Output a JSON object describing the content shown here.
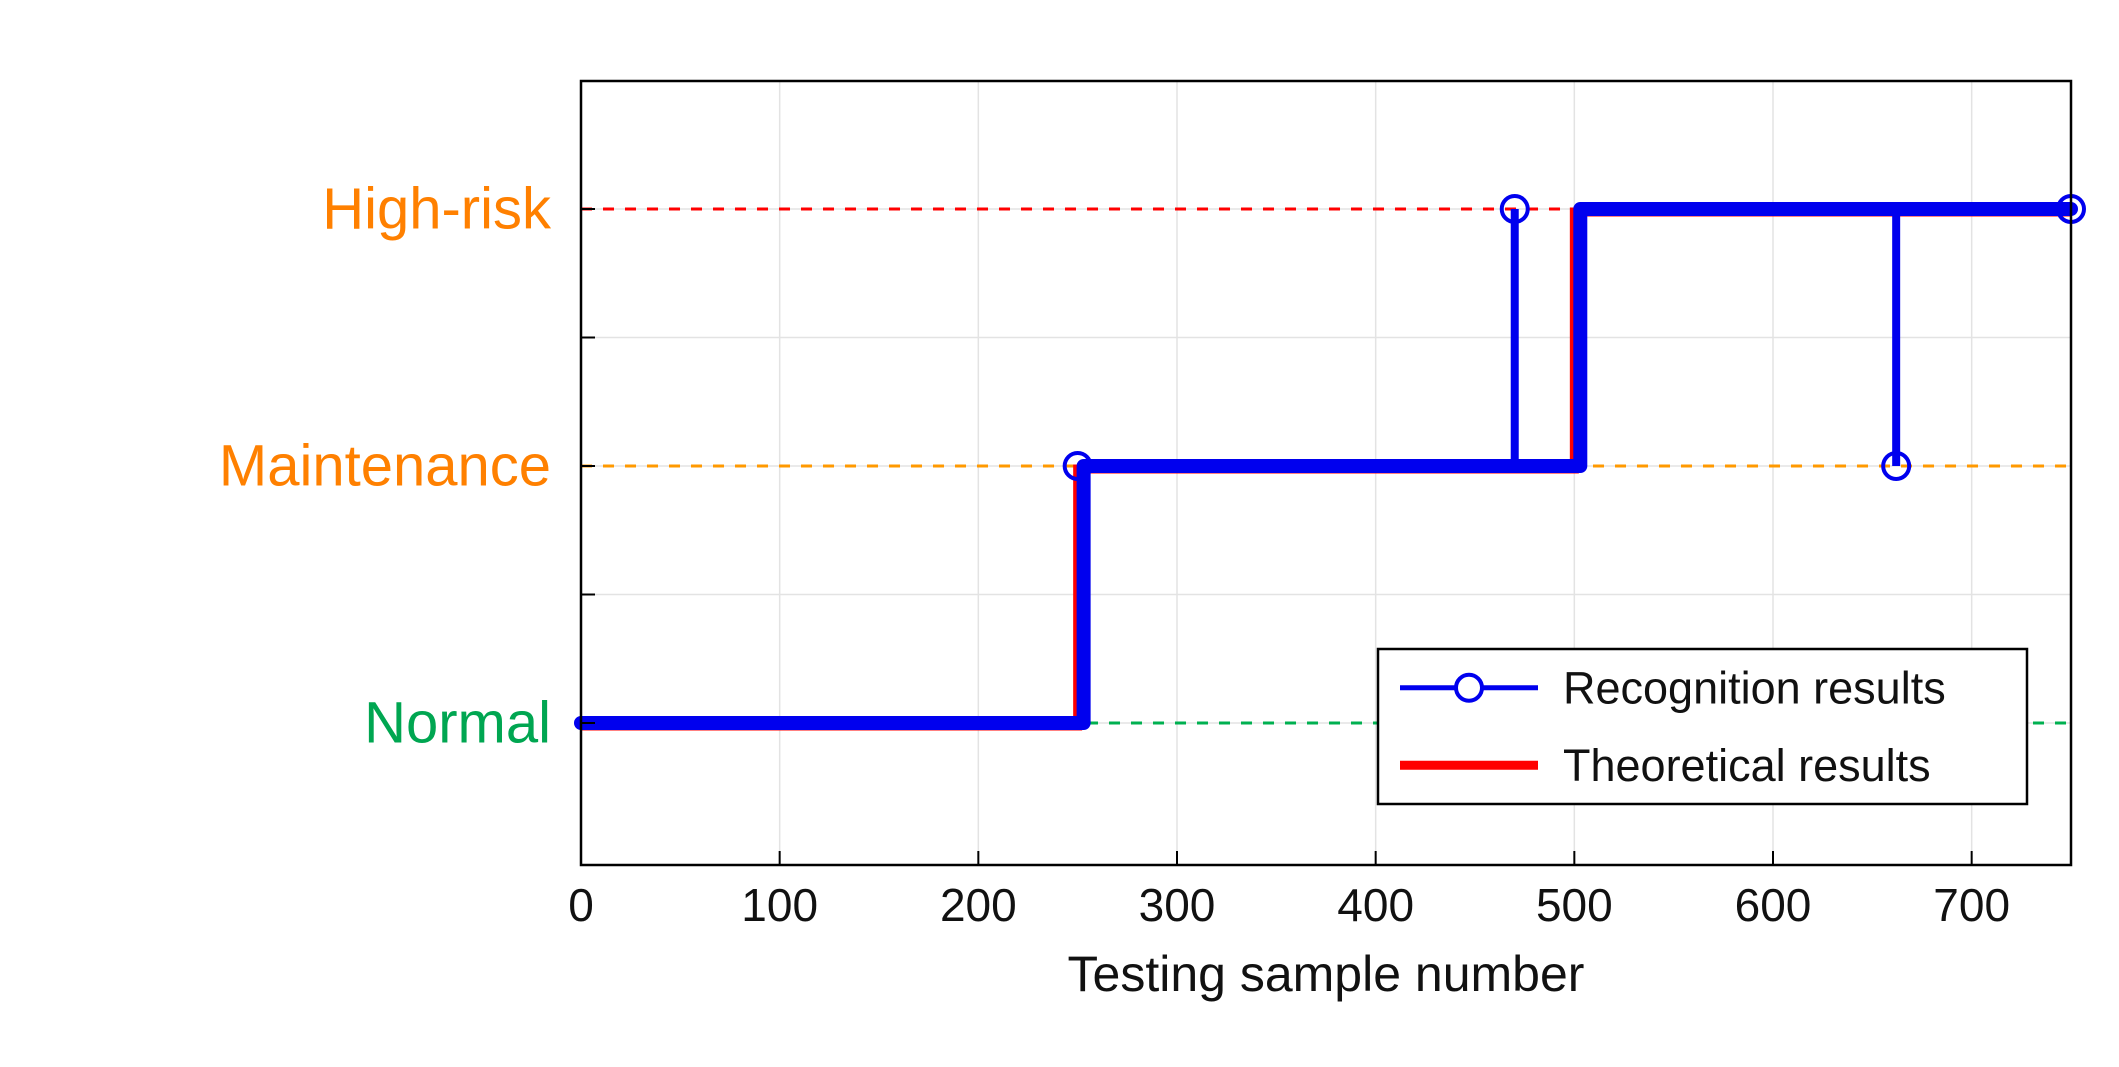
{
  "figure": {
    "background": "#ffffff"
  },
  "chart_data": {
    "type": "line",
    "subtype": "step",
    "title": "",
    "xlabel": "Testing sample number",
    "ylabel": "",
    "xlim": [
      0,
      750
    ],
    "ylim": [
      0.45,
      3.5
    ],
    "x_ticks": [
      0,
      100,
      200,
      300,
      400,
      500,
      600,
      700
    ],
    "grid": true,
    "grid_y_minor": [
      1.5,
      2.5
    ],
    "axis_color": "#000000",
    "grid_color": "#e3e3e3",
    "y_categories": [
      {
        "label": "Normal",
        "value": 1,
        "label_color": "#00a651",
        "dash_color": "#00b050"
      },
      {
        "label": "Maintenance",
        "value": 2,
        "label_color": "#ff8000",
        "dash_color": "#ff9900"
      },
      {
        "label": "High-risk",
        "value": 3,
        "label_color": "#ff8000",
        "dash_color": "#ff0000"
      }
    ],
    "series": [
      {
        "name": "Theoretical results",
        "color": "#ff0000",
        "line_width": 9,
        "steps": [
          {
            "x_start": 0,
            "x_end": 250,
            "y": 1
          },
          {
            "x_start": 250,
            "x_end": 500,
            "y": 2
          },
          {
            "x_start": 500,
            "x_end": 750,
            "y": 3
          }
        ]
      },
      {
        "name": "Recognition results",
        "color": "#0000ee",
        "line_width": 14,
        "marker": "circle",
        "steps": [
          {
            "x_start": 0,
            "x_end": 253,
            "y": 1
          },
          {
            "x_start": 253,
            "x_end": 503,
            "y": 2
          },
          {
            "x_start": 503,
            "x_end": 750,
            "y": 3
          }
        ],
        "outliers": [
          {
            "x": 470,
            "y": 3,
            "base_y": 2
          },
          {
            "x": 662,
            "y": 2,
            "base_y": 3
          }
        ],
        "markers": [
          {
            "x": 250,
            "y": 2
          },
          {
            "x": 470,
            "y": 3
          },
          {
            "x": 662,
            "y": 2
          },
          {
            "x": 750,
            "y": 3
          }
        ]
      }
    ],
    "legend": {
      "position": "lower right",
      "entries": [
        {
          "label": "Recognition results",
          "color": "#0000ee",
          "marker": "circle",
          "line_width": 5
        },
        {
          "label": "Theoretical results",
          "color": "#ff0000",
          "marker": "none",
          "line_width": 9
        }
      ]
    }
  }
}
